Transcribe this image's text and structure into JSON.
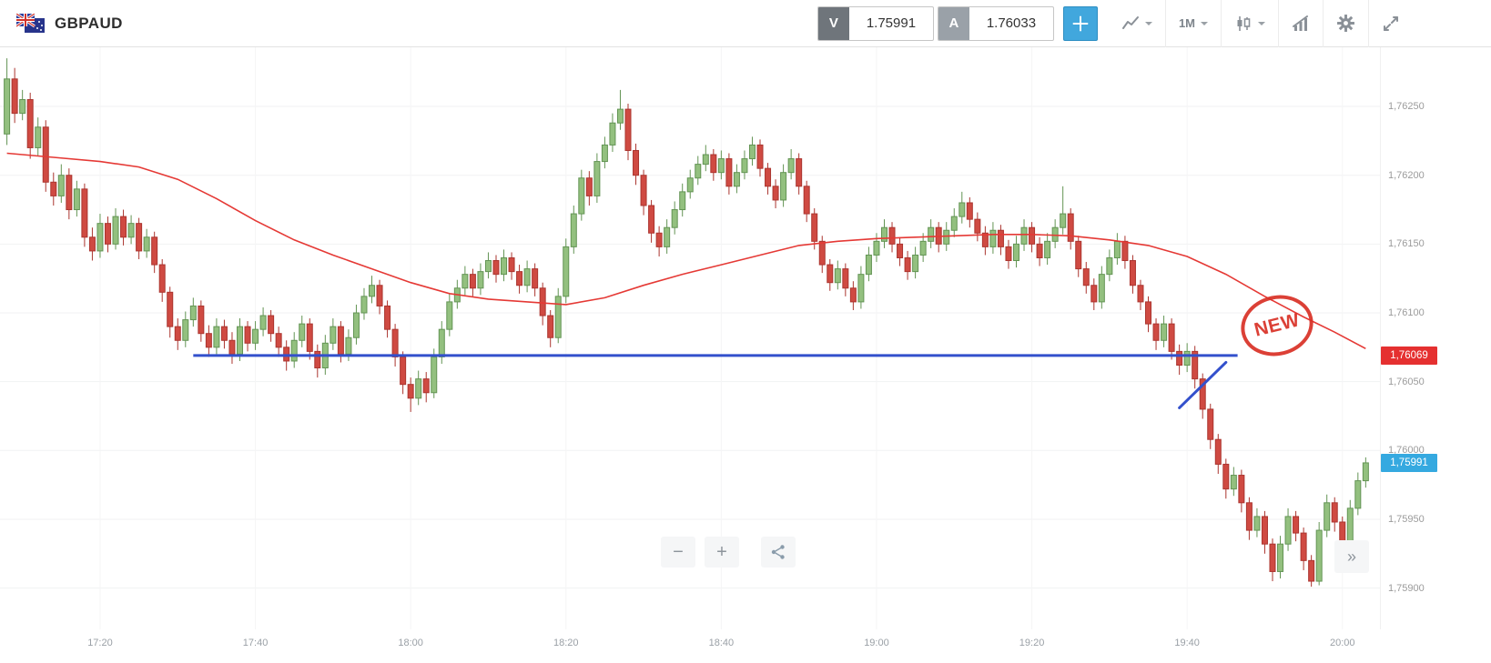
{
  "header": {
    "symbol": "GBPAUD",
    "sell": {
      "label": "V",
      "price": "1.75991"
    },
    "buy": {
      "label": "A",
      "price": "1.76033"
    },
    "timeframe": "1M"
  },
  "controls": {
    "zoom_out": "−",
    "zoom_in": "+",
    "collapse": "»"
  },
  "colors": {
    "candle_up_fill": "#93c07f",
    "candle_up_stroke": "#639454",
    "candle_down_fill": "#cf4a42",
    "candle_down_stroke": "#ab352f",
    "ma_line": "#e53935",
    "trend_line": "#3350cc",
    "sell_badge": "#e53030",
    "buy_badge": "#35a9e0",
    "accent": "#41a7dd"
  },
  "chart_data": {
    "type": "candlestick",
    "symbol": "GBPAUD",
    "interval": "1M",
    "start_time": "17:08",
    "interval_min": 1,
    "y_axis": {
      "range": [
        1.7587,
        1.76293
      ],
      "grid": true,
      "ticks": [
        {
          "value": 1.7625,
          "label": "1,76250"
        },
        {
          "value": 1.762,
          "label": "1,76200"
        },
        {
          "value": 1.7615,
          "label": "1,76150"
        },
        {
          "value": 1.761,
          "label": "1,76100"
        },
        {
          "value": 1.7605,
          "label": "1,76050"
        },
        {
          "value": 1.76,
          "label": "1,76000"
        },
        {
          "value": 1.7595,
          "label": "1,75950"
        },
        {
          "value": 1.759,
          "label": "1,75900"
        }
      ]
    },
    "x_axis": {
      "ticks": [
        {
          "t": 12,
          "label": "17:20"
        },
        {
          "t": 32,
          "label": "17:40"
        },
        {
          "t": 52,
          "label": "18:00"
        },
        {
          "t": 72,
          "label": "18:20"
        },
        {
          "t": 92,
          "label": "18:40"
        },
        {
          "t": 112,
          "label": "19:00"
        },
        {
          "t": 132,
          "label": "19:20"
        },
        {
          "t": 152,
          "label": "19:40"
        },
        {
          "t": 172,
          "label": "20:00"
        }
      ]
    },
    "price_badges": [
      {
        "value": 1.76069,
        "label": "1,76069",
        "color": "#e53030"
      },
      {
        "value": 1.75991,
        "label": "1,75991",
        "color": "#35a9e0"
      }
    ],
    "annotations": {
      "hline": {
        "price": 1.76069,
        "t1": 24,
        "t2": 158.5,
        "color": "#3350cc",
        "width": 3
      },
      "segment": {
        "t1": 151,
        "p1": 1.76031,
        "t2": 157,
        "p2": 1.76064,
        "color": "#3350cc",
        "width": 3
      },
      "stamp": {
        "text": "NEW",
        "t": 163.6,
        "price": 1.76091,
        "color": "#d93025"
      }
    },
    "ma_line": {
      "name": "moving-average",
      "color": "#e53935",
      "points": [
        [
          0,
          1.76216
        ],
        [
          6,
          1.76213
        ],
        [
          12,
          1.7621
        ],
        [
          17,
          1.76206
        ],
        [
          22,
          1.76197
        ],
        [
          27,
          1.76183
        ],
        [
          32,
          1.76167
        ],
        [
          37,
          1.76153
        ],
        [
          42,
          1.76142
        ],
        [
          47,
          1.76132
        ],
        [
          52,
          1.76122
        ],
        [
          57,
          1.76114
        ],
        [
          62,
          1.7611
        ],
        [
          67,
          1.76108
        ],
        [
          72,
          1.76106
        ],
        [
          77,
          1.76111
        ],
        [
          82,
          1.7612
        ],
        [
          87,
          1.76128
        ],
        [
          92,
          1.76135
        ],
        [
          97,
          1.76142
        ],
        [
          102,
          1.76149
        ],
        [
          107,
          1.76152
        ],
        [
          112,
          1.76154
        ],
        [
          117,
          1.76155
        ],
        [
          122,
          1.76156
        ],
        [
          127,
          1.76157
        ],
        [
          132,
          1.76157
        ],
        [
          137,
          1.76156
        ],
        [
          142,
          1.76153
        ],
        [
          147,
          1.76149
        ],
        [
          152,
          1.76141
        ],
        [
          157,
          1.76128
        ],
        [
          162,
          1.76112
        ],
        [
          167,
          1.76097
        ],
        [
          171,
          1.76086
        ],
        [
          175,
          1.76074
        ]
      ]
    },
    "candles": [
      [
        1.7623,
        1.76285,
        1.76222,
        1.7627
      ],
      [
        1.7627,
        1.76278,
        1.76238,
        1.76245
      ],
      [
        1.76245,
        1.76262,
        1.7624,
        1.76255
      ],
      [
        1.76255,
        1.7626,
        1.76212,
        1.7622
      ],
      [
        1.7622,
        1.76242,
        1.76214,
        1.76235
      ],
      [
        1.76235,
        1.7624,
        1.76188,
        1.76195
      ],
      [
        1.76195,
        1.76202,
        1.76178,
        1.76185
      ],
      [
        1.76185,
        1.76208,
        1.7618,
        1.762
      ],
      [
        1.762,
        1.76205,
        1.76168,
        1.76175
      ],
      [
        1.76175,
        1.76196,
        1.7617,
        1.7619
      ],
      [
        1.7619,
        1.76194,
        1.76148,
        1.76155
      ],
      [
        1.76155,
        1.76162,
        1.76138,
        1.76145
      ],
      [
        1.76145,
        1.76172,
        1.7614,
        1.76165
      ],
      [
        1.76165,
        1.7617,
        1.76144,
        1.7615
      ],
      [
        1.7615,
        1.76176,
        1.76146,
        1.7617
      ],
      [
        1.7617,
        1.76175,
        1.76149,
        1.76155
      ],
      [
        1.76155,
        1.76171,
        1.7615,
        1.76165
      ],
      [
        1.76165,
        1.76169,
        1.76139,
        1.76145
      ],
      [
        1.76145,
        1.76161,
        1.7614,
        1.76155
      ],
      [
        1.76155,
        1.76159,
        1.76129,
        1.76135
      ],
      [
        1.76135,
        1.76139,
        1.76108,
        1.76115
      ],
      [
        1.76115,
        1.76119,
        1.76082,
        1.7609
      ],
      [
        1.7609,
        1.76096,
        1.76073,
        1.7608
      ],
      [
        1.7608,
        1.76101,
        1.76075,
        1.76095
      ],
      [
        1.76095,
        1.76111,
        1.7609,
        1.76105
      ],
      [
        1.76105,
        1.76109,
        1.76079,
        1.76085
      ],
      [
        1.76085,
        1.76091,
        1.76068,
        1.76075
      ],
      [
        1.76075,
        1.76096,
        1.7607,
        1.7609
      ],
      [
        1.7609,
        1.76095,
        1.76074,
        1.7608
      ],
      [
        1.7608,
        1.76086,
        1.76063,
        1.7607
      ],
      [
        1.7607,
        1.76096,
        1.76065,
        1.7609
      ],
      [
        1.7609,
        1.76094,
        1.76072,
        1.76078
      ],
      [
        1.76078,
        1.76094,
        1.76073,
        1.76088
      ],
      [
        1.76088,
        1.76104,
        1.76083,
        1.76098
      ],
      [
        1.76098,
        1.76102,
        1.76079,
        1.76085
      ],
      [
        1.76085,
        1.7609,
        1.76068,
        1.76075
      ],
      [
        1.76075,
        1.7608,
        1.76058,
        1.76065
      ],
      [
        1.76065,
        1.76086,
        1.7606,
        1.7608
      ],
      [
        1.7608,
        1.76098,
        1.76075,
        1.76092
      ],
      [
        1.76092,
        1.76096,
        1.76066,
        1.76072
      ],
      [
        1.76072,
        1.76077,
        1.76053,
        1.7606
      ],
      [
        1.7606,
        1.76084,
        1.76055,
        1.76078
      ],
      [
        1.76078,
        1.76096,
        1.76073,
        1.7609
      ],
      [
        1.7609,
        1.76094,
        1.76064,
        1.7607
      ],
      [
        1.7607,
        1.76088,
        1.76065,
        1.76082
      ],
      [
        1.76082,
        1.76106,
        1.76077,
        1.761
      ],
      [
        1.761,
        1.76118,
        1.76095,
        1.76112
      ],
      [
        1.76112,
        1.76127,
        1.76107,
        1.7612
      ],
      [
        1.7612,
        1.76124,
        1.76099,
        1.76105
      ],
      [
        1.76105,
        1.76109,
        1.76082,
        1.76088
      ],
      [
        1.76088,
        1.76092,
        1.76061,
        1.76068
      ],
      [
        1.76068,
        1.76072,
        1.76041,
        1.76048
      ],
      [
        1.76048,
        1.76053,
        1.76028,
        1.76038
      ],
      [
        1.76038,
        1.76058,
        1.76033,
        1.76052
      ],
      [
        1.76052,
        1.76057,
        1.76035,
        1.76042
      ],
      [
        1.76042,
        1.76074,
        1.76038,
        1.76068
      ],
      [
        1.76068,
        1.76094,
        1.76063,
        1.76088
      ],
      [
        1.76088,
        1.76114,
        1.76083,
        1.76108
      ],
      [
        1.76108,
        1.76124,
        1.76103,
        1.76118
      ],
      [
        1.76118,
        1.76134,
        1.76113,
        1.76128
      ],
      [
        1.76128,
        1.76132,
        1.76112,
        1.76118
      ],
      [
        1.76118,
        1.76136,
        1.76113,
        1.7613
      ],
      [
        1.7613,
        1.76144,
        1.76125,
        1.76138
      ],
      [
        1.76138,
        1.76142,
        1.76122,
        1.76128
      ],
      [
        1.76128,
        1.76146,
        1.76123,
        1.7614
      ],
      [
        1.7614,
        1.76144,
        1.76124,
        1.7613
      ],
      [
        1.7613,
        1.76135,
        1.76114,
        1.7612
      ],
      [
        1.7612,
        1.76138,
        1.76115,
        1.76132
      ],
      [
        1.76132,
        1.76136,
        1.76112,
        1.76118
      ],
      [
        1.76118,
        1.76122,
        1.76091,
        1.76098
      ],
      [
        1.76098,
        1.76102,
        1.76075,
        1.76082
      ],
      [
        1.76082,
        1.76118,
        1.76078,
        1.76112
      ],
      [
        1.76112,
        1.76154,
        1.76107,
        1.76148
      ],
      [
        1.76148,
        1.76178,
        1.76143,
        1.76172
      ],
      [
        1.76172,
        1.76204,
        1.76167,
        1.76198
      ],
      [
        1.76198,
        1.76203,
        1.76178,
        1.76185
      ],
      [
        1.76185,
        1.76216,
        1.7618,
        1.7621
      ],
      [
        1.7621,
        1.76228,
        1.76205,
        1.76222
      ],
      [
        1.76222,
        1.76245,
        1.76217,
        1.76238
      ],
      [
        1.76238,
        1.76262,
        1.76233,
        1.76248
      ],
      [
        1.76248,
        1.76252,
        1.76211,
        1.76218
      ],
      [
        1.76218,
        1.76223,
        1.76193,
        1.762
      ],
      [
        1.762,
        1.76204,
        1.76171,
        1.76178
      ],
      [
        1.76178,
        1.76182,
        1.76151,
        1.76158
      ],
      [
        1.76158,
        1.76163,
        1.76141,
        1.76148
      ],
      [
        1.76148,
        1.76168,
        1.76143,
        1.76162
      ],
      [
        1.76162,
        1.76181,
        1.76157,
        1.76175
      ],
      [
        1.76175,
        1.76194,
        1.7617,
        1.76188
      ],
      [
        1.76188,
        1.76204,
        1.76183,
        1.76198
      ],
      [
        1.76198,
        1.76214,
        1.76193,
        1.76208
      ],
      [
        1.76208,
        1.76222,
        1.76203,
        1.76215
      ],
      [
        1.76215,
        1.76219,
        1.76196,
        1.76202
      ],
      [
        1.76202,
        1.76218,
        1.76197,
        1.76212
      ],
      [
        1.76212,
        1.76216,
        1.76186,
        1.76192
      ],
      [
        1.76192,
        1.76208,
        1.76187,
        1.76202
      ],
      [
        1.76202,
        1.76218,
        1.76197,
        1.76212
      ],
      [
        1.76212,
        1.76228,
        1.76207,
        1.76222
      ],
      [
        1.76222,
        1.76226,
        1.76199,
        1.76205
      ],
      [
        1.76205,
        1.76209,
        1.76186,
        1.76192
      ],
      [
        1.76192,
        1.76197,
        1.76176,
        1.76182
      ],
      [
        1.76182,
        1.76208,
        1.76177,
        1.76202
      ],
      [
        1.76202,
        1.76219,
        1.76197,
        1.76212
      ],
      [
        1.76212,
        1.76216,
        1.76186,
        1.76192
      ],
      [
        1.76192,
        1.76196,
        1.76166,
        1.76172
      ],
      [
        1.76172,
        1.76176,
        1.76146,
        1.76152
      ],
      [
        1.76152,
        1.76156,
        1.76129,
        1.76135
      ],
      [
        1.76135,
        1.76139,
        1.76116,
        1.76122
      ],
      [
        1.76122,
        1.76138,
        1.76117,
        1.76132
      ],
      [
        1.76132,
        1.76136,
        1.76112,
        1.76118
      ],
      [
        1.76118,
        1.76123,
        1.76102,
        1.76108
      ],
      [
        1.76108,
        1.76134,
        1.76103,
        1.76128
      ],
      [
        1.76128,
        1.76148,
        1.76123,
        1.76142
      ],
      [
        1.76142,
        1.76158,
        1.76137,
        1.76152
      ],
      [
        1.76152,
        1.76168,
        1.76147,
        1.76162
      ],
      [
        1.76162,
        1.76166,
        1.76144,
        1.7615
      ],
      [
        1.7615,
        1.76155,
        1.76134,
        1.7614
      ],
      [
        1.7614,
        1.76145,
        1.76124,
        1.7613
      ],
      [
        1.7613,
        1.76148,
        1.76125,
        1.76142
      ],
      [
        1.76142,
        1.76158,
        1.76137,
        1.76152
      ],
      [
        1.76152,
        1.76168,
        1.76147,
        1.76162
      ],
      [
        1.76162,
        1.76166,
        1.76144,
        1.7615
      ],
      [
        1.7615,
        1.76166,
        1.76145,
        1.7616
      ],
      [
        1.7616,
        1.76176,
        1.76155,
        1.7617
      ],
      [
        1.7617,
        1.76188,
        1.76165,
        1.7618
      ],
      [
        1.7618,
        1.76184,
        1.76162,
        1.76168
      ],
      [
        1.76168,
        1.76173,
        1.76152,
        1.76158
      ],
      [
        1.76158,
        1.76163,
        1.76142,
        1.76148
      ],
      [
        1.76148,
        1.76166,
        1.76143,
        1.7616
      ],
      [
        1.7616,
        1.76164,
        1.76142,
        1.76148
      ],
      [
        1.76148,
        1.76153,
        1.76132,
        1.76138
      ],
      [
        1.76138,
        1.76156,
        1.76133,
        1.7615
      ],
      [
        1.7615,
        1.76168,
        1.76145,
        1.76162
      ],
      [
        1.76162,
        1.76166,
        1.76144,
        1.7615
      ],
      [
        1.7615,
        1.76155,
        1.76134,
        1.7614
      ],
      [
        1.7614,
        1.76158,
        1.76135,
        1.76152
      ],
      [
        1.76152,
        1.76168,
        1.76147,
        1.76162
      ],
      [
        1.76162,
        1.76192,
        1.76157,
        1.76172
      ],
      [
        1.76172,
        1.76176,
        1.76146,
        1.76152
      ],
      [
        1.76152,
        1.76156,
        1.76126,
        1.76132
      ],
      [
        1.76132,
        1.76137,
        1.76114,
        1.7612
      ],
      [
        1.7612,
        1.76125,
        1.76102,
        1.76108
      ],
      [
        1.76108,
        1.76134,
        1.76103,
        1.76128
      ],
      [
        1.76128,
        1.76146,
        1.76123,
        1.7614
      ],
      [
        1.7614,
        1.76158,
        1.76135,
        1.76152
      ],
      [
        1.76152,
        1.76156,
        1.76132,
        1.76138
      ],
      [
        1.76138,
        1.76142,
        1.76114,
        1.7612
      ],
      [
        1.7612,
        1.76124,
        1.76102,
        1.76108
      ],
      [
        1.76108,
        1.76112,
        1.76086,
        1.76092
      ],
      [
        1.76092,
        1.76096,
        1.76073,
        1.7608
      ],
      [
        1.7608,
        1.76098,
        1.76075,
        1.76092
      ],
      [
        1.76092,
        1.76096,
        1.76066,
        1.76072
      ],
      [
        1.76072,
        1.76077,
        1.76055,
        1.76062
      ],
      [
        1.76062,
        1.76078,
        1.76057,
        1.76072
      ],
      [
        1.76072,
        1.76076,
        1.76045,
        1.76052
      ],
      [
        1.76052,
        1.76056,
        1.76023,
        1.7603
      ],
      [
        1.7603,
        1.76034,
        1.76001,
        1.76008
      ],
      [
        1.76008,
        1.76012,
        1.75983,
        1.7599
      ],
      [
        1.7599,
        1.75994,
        1.75965,
        1.75972
      ],
      [
        1.75972,
        1.75988,
        1.75967,
        1.75982
      ],
      [
        1.75982,
        1.75986,
        1.75955,
        1.75962
      ],
      [
        1.75962,
        1.75966,
        1.75935,
        1.75942
      ],
      [
        1.75942,
        1.75958,
        1.75937,
        1.75952
      ],
      [
        1.75952,
        1.75956,
        1.75925,
        1.75932
      ],
      [
        1.75932,
        1.75936,
        1.75905,
        1.75912
      ],
      [
        1.75912,
        1.75938,
        1.75907,
        1.75932
      ],
      [
        1.75932,
        1.75958,
        1.75927,
        1.75952
      ],
      [
        1.75952,
        1.75956,
        1.75934,
        1.7594
      ],
      [
        1.7594,
        1.75944,
        1.75913,
        1.7592
      ],
      [
        1.7592,
        1.75924,
        1.75901,
        1.75905
      ],
      [
        1.75905,
        1.75948,
        1.75902,
        1.75942
      ],
      [
        1.75942,
        1.75968,
        1.75937,
        1.75962
      ],
      [
        1.75962,
        1.75966,
        1.75941,
        1.75948
      ],
      [
        1.75948,
        1.75952,
        1.75923,
        1.7593
      ],
      [
        1.7593,
        1.75964,
        1.75925,
        1.75958
      ],
      [
        1.75958,
        1.75984,
        1.75953,
        1.75978
      ],
      [
        1.75978,
        1.75995,
        1.75973,
        1.75991
      ]
    ]
  }
}
